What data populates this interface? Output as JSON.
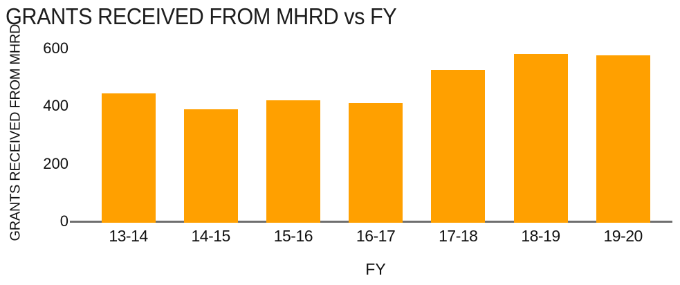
{
  "page": {
    "background": "#ffffff"
  },
  "chart_data": {
    "type": "bar",
    "title": "GRANTS RECEIVED FROM MHRD vs FY",
    "xlabel": "FY",
    "ylabel": "GRANTS RECEIVED FROM MHRD",
    "categories": [
      "13-14",
      "14-15",
      "15-16",
      "16-17",
      "17-18",
      "18-19",
      "19-20"
    ],
    "values": [
      445,
      390,
      420,
      410,
      525,
      580,
      575
    ],
    "yticks": [
      0,
      200,
      400,
      600
    ],
    "ylim": [
      0,
      600
    ],
    "grid": false,
    "legend": false,
    "bar_color": "#FFA000",
    "axis_line_color": "#6F6F6F",
    "title_color": "#1D1D1D",
    "tick_color": "#111111"
  }
}
